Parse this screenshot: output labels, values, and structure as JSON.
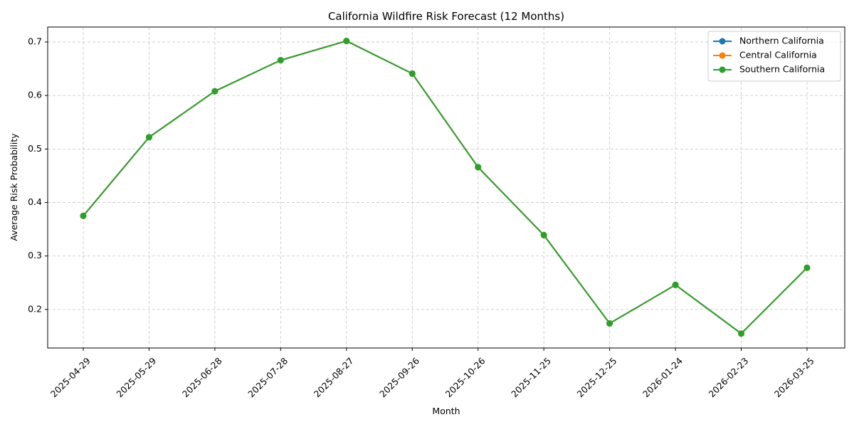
{
  "chart_data": {
    "type": "line",
    "title": "California Wildfire Risk Forecast (12 Months)",
    "xlabel": "Month",
    "ylabel": "Average Risk Probability",
    "categories": [
      "2025-04-29",
      "2025-05-29",
      "2025-06-28",
      "2025-07-28",
      "2025-08-27",
      "2025-09-26",
      "2025-10-26",
      "2025-11-25",
      "2025-12-25",
      "2026-01-24",
      "2026-02-23",
      "2026-03-25"
    ],
    "ylim": [
      0.128,
      0.728
    ],
    "yticks": [
      0.2,
      0.3,
      0.4,
      0.5,
      0.6,
      0.7
    ],
    "grid": true,
    "legend_position": "top-right",
    "marker": "circle",
    "series": [
      {
        "name": "Northern California",
        "color": "#1f77b4",
        "values": [
          0.375,
          0.522,
          0.608,
          0.666,
          0.702,
          0.641,
          0.466,
          0.339,
          0.174,
          0.246,
          0.155,
          0.278
        ]
      },
      {
        "name": "Central California",
        "color": "#ff7f0e",
        "values": [
          0.375,
          0.522,
          0.608,
          0.666,
          0.702,
          0.641,
          0.466,
          0.339,
          0.174,
          0.246,
          0.155,
          0.278
        ]
      },
      {
        "name": "Southern California",
        "color": "#2ca02c",
        "values": [
          0.375,
          0.522,
          0.608,
          0.666,
          0.702,
          0.641,
          0.466,
          0.339,
          0.174,
          0.246,
          0.155,
          0.278
        ]
      }
    ]
  }
}
